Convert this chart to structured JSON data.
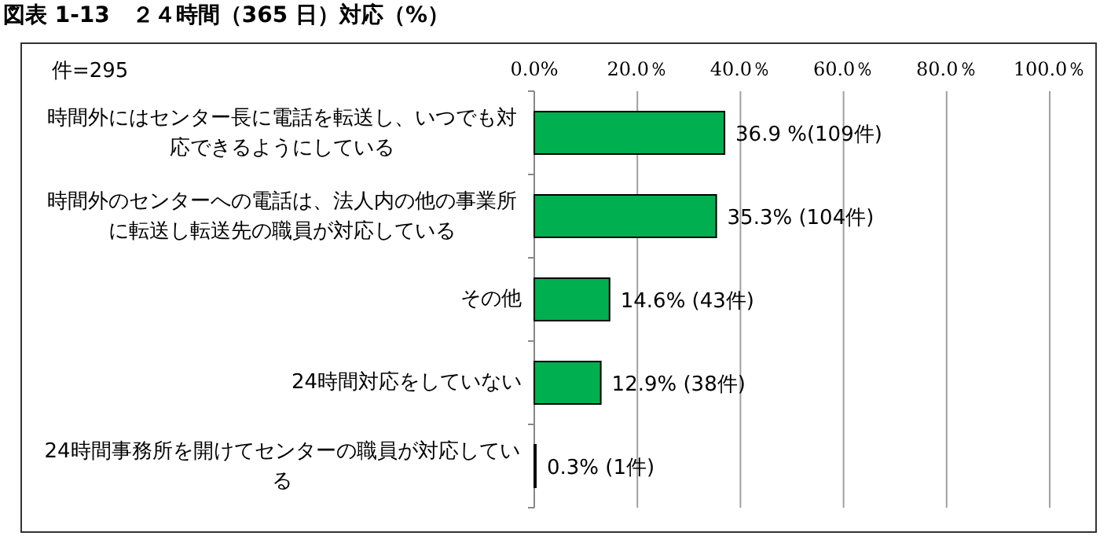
{
  "chart_data": {
    "type": "bar",
    "orientation": "horizontal",
    "title": "図表 1-13　２４時間（365 日）対応（%）",
    "annotations": [
      "件=295"
    ],
    "categories": [
      "時間外にはセンター長に電話を転送し、いつでも対応できるようにしている",
      "時間外のセンターへの電話は、法人内の他の事業所に転送し転送先の職員が対応している",
      "その他",
      "24時間対応をしていない",
      "24時間事務所を開けてセンターの職員が対応している"
    ],
    "values": [
      36.9,
      35.3,
      14.6,
      12.9,
      0.3
    ],
    "value_labels": [
      "36.9 %(109件)",
      "35.3% (104件)",
      "14.6% (43件)",
      "12.9% (38件)",
      "0.3% (1件)"
    ],
    "color": "#00b050",
    "xlim": [
      0,
      100
    ],
    "xticks": [
      {
        "value": 0,
        "label": "0.0%"
      },
      {
        "value": 20,
        "label": "20.0％"
      },
      {
        "value": 40,
        "label": "40.0％"
      },
      {
        "value": 60,
        "label": "60.0％"
      },
      {
        "value": 80,
        "label": "80.0％"
      },
      {
        "value": 100,
        "label": "100.0％"
      }
    ],
    "grid": "x"
  }
}
